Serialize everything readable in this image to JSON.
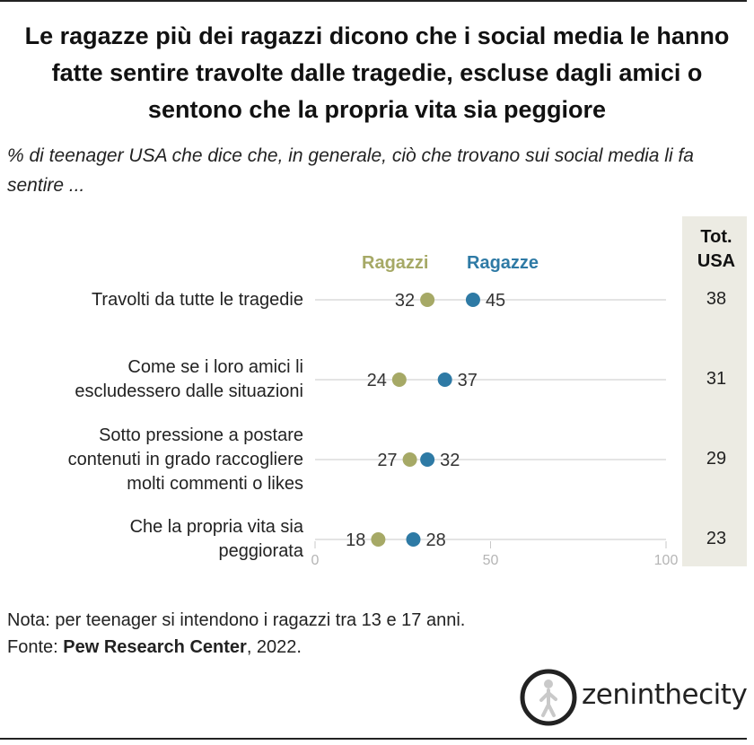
{
  "title": "Le ragazze più dei ragazzi dicono che i social media le hanno fatte sentire travolte dalle tragedie, escluse dagli amici o sentono che la propria vita sia peggiore",
  "subtitle": "% di teenager USA che dice che, in generale, ciò che trovano sui social media li fa sentire ...",
  "total_header": "Tot. USA",
  "note": "Nota: per teenager si intendono i ragazzi tra 13 e 17 anni.",
  "source": {
    "prefix": "Fonte: ",
    "name": "Pew Research Center",
    "suffix": ", 2022."
  },
  "logo": {
    "text": "zeninthecity",
    "icon": "walking-person-circle-icon"
  },
  "colors": {
    "boys": "#a6a966",
    "girls": "#2e7aa5",
    "axis": "#c8c8c8",
    "total_bg": "#ecebe3"
  },
  "chart_data": {
    "type": "dot",
    "xlim": [
      0,
      100
    ],
    "ticks": [
      0,
      50,
      100
    ],
    "categories": [
      "Travolti da tutte le tragedie",
      "Come se i loro amici li escludessero dalle situazioni",
      "Sotto pressione a postare contenuti in grado raccogliere molti commenti o likes",
      "Che la propria vita sia peggiorata"
    ],
    "category_lines": [
      [
        "Travolti da tutte le tragedie"
      ],
      [
        "Come se i loro amici li",
        "escludessero dalle situazioni"
      ],
      [
        "Sotto pressione a postare",
        "contenuti in grado raccogliere",
        "molti commenti o likes"
      ],
      [
        "Che la propria vita sia",
        "peggiorata"
      ]
    ],
    "series": [
      {
        "name": "Ragazzi",
        "values": [
          32,
          24,
          27,
          18
        ]
      },
      {
        "name": "Ragazze",
        "values": [
          45,
          37,
          32,
          28
        ]
      }
    ],
    "totals": [
      38,
      31,
      29,
      23
    ]
  }
}
